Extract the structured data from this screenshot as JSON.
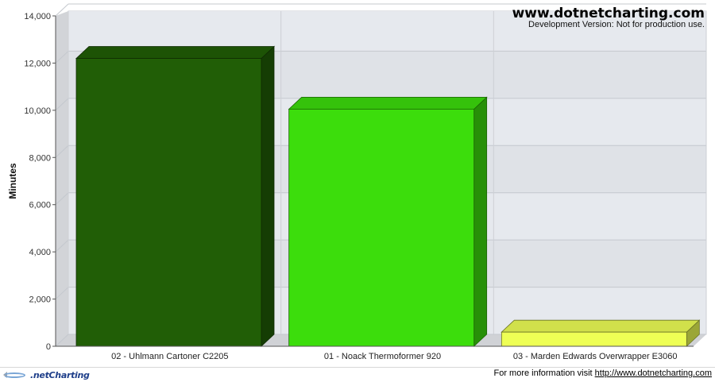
{
  "chart_data": {
    "type": "bar",
    "categories": [
      "02 - Uhlmann Cartoner C2205",
      "01 - Noack Thermoformer 920",
      "03 - Marden Edwards Overwrapper E3060"
    ],
    "values": [
      12200,
      10050,
      600
    ],
    "colors": [
      "#215e06",
      "#3cdd0c",
      "#eeff55"
    ],
    "xlabel": "",
    "ylabel": "Minutes",
    "ylim": [
      0,
      14000
    ],
    "yticks": [
      0,
      2000,
      4000,
      6000,
      8000,
      10000,
      12000,
      14000
    ],
    "ytick_labels": [
      "0",
      "2,000",
      "4,000",
      "6,000",
      "8,000",
      "10,000",
      "12,000",
      "14,000"
    ],
    "grid": true,
    "legend": "none"
  },
  "watermark": {
    "title": "www.dotnetcharting.com",
    "subtitle": "Development Version: Not for production use."
  },
  "footer": {
    "logo_text": ".netCharting",
    "info_prefix": "For more information visit ",
    "info_link": "http://www.dotnetcharting.com"
  }
}
